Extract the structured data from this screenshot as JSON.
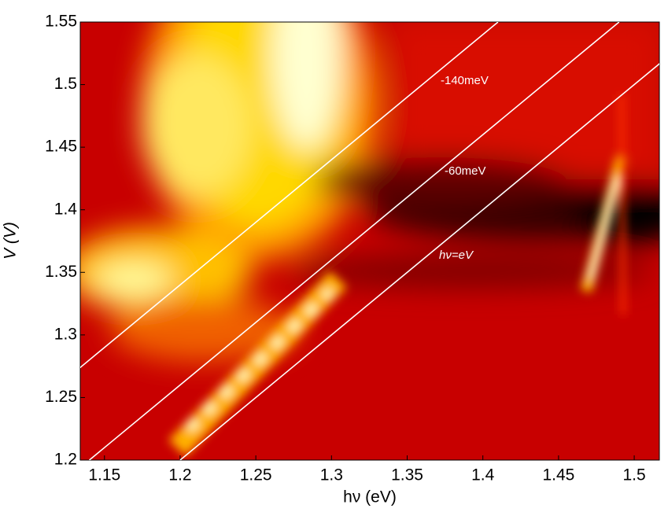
{
  "chart_data": {
    "type": "heatmap",
    "x_label": "hν (eV)",
    "y_label": "V (V)",
    "xlim": [
      1.134,
      1.5166
    ],
    "ylim": [
      1.2,
      1.55
    ],
    "xticks": [
      1.15,
      1.2,
      1.25,
      1.3,
      1.35,
      1.4,
      1.45,
      1.5
    ],
    "yticks": [
      1.2,
      1.25,
      1.3,
      1.35,
      1.4,
      1.45,
      1.5,
      1.55
    ],
    "lines": [
      {
        "label": "-140meV",
        "offset": -0.14
      },
      {
        "label": "-60meV",
        "offset": -0.06
      },
      {
        "label": "hν=eV",
        "offset": 0
      }
    ],
    "line_color": "#ffffff"
  }
}
